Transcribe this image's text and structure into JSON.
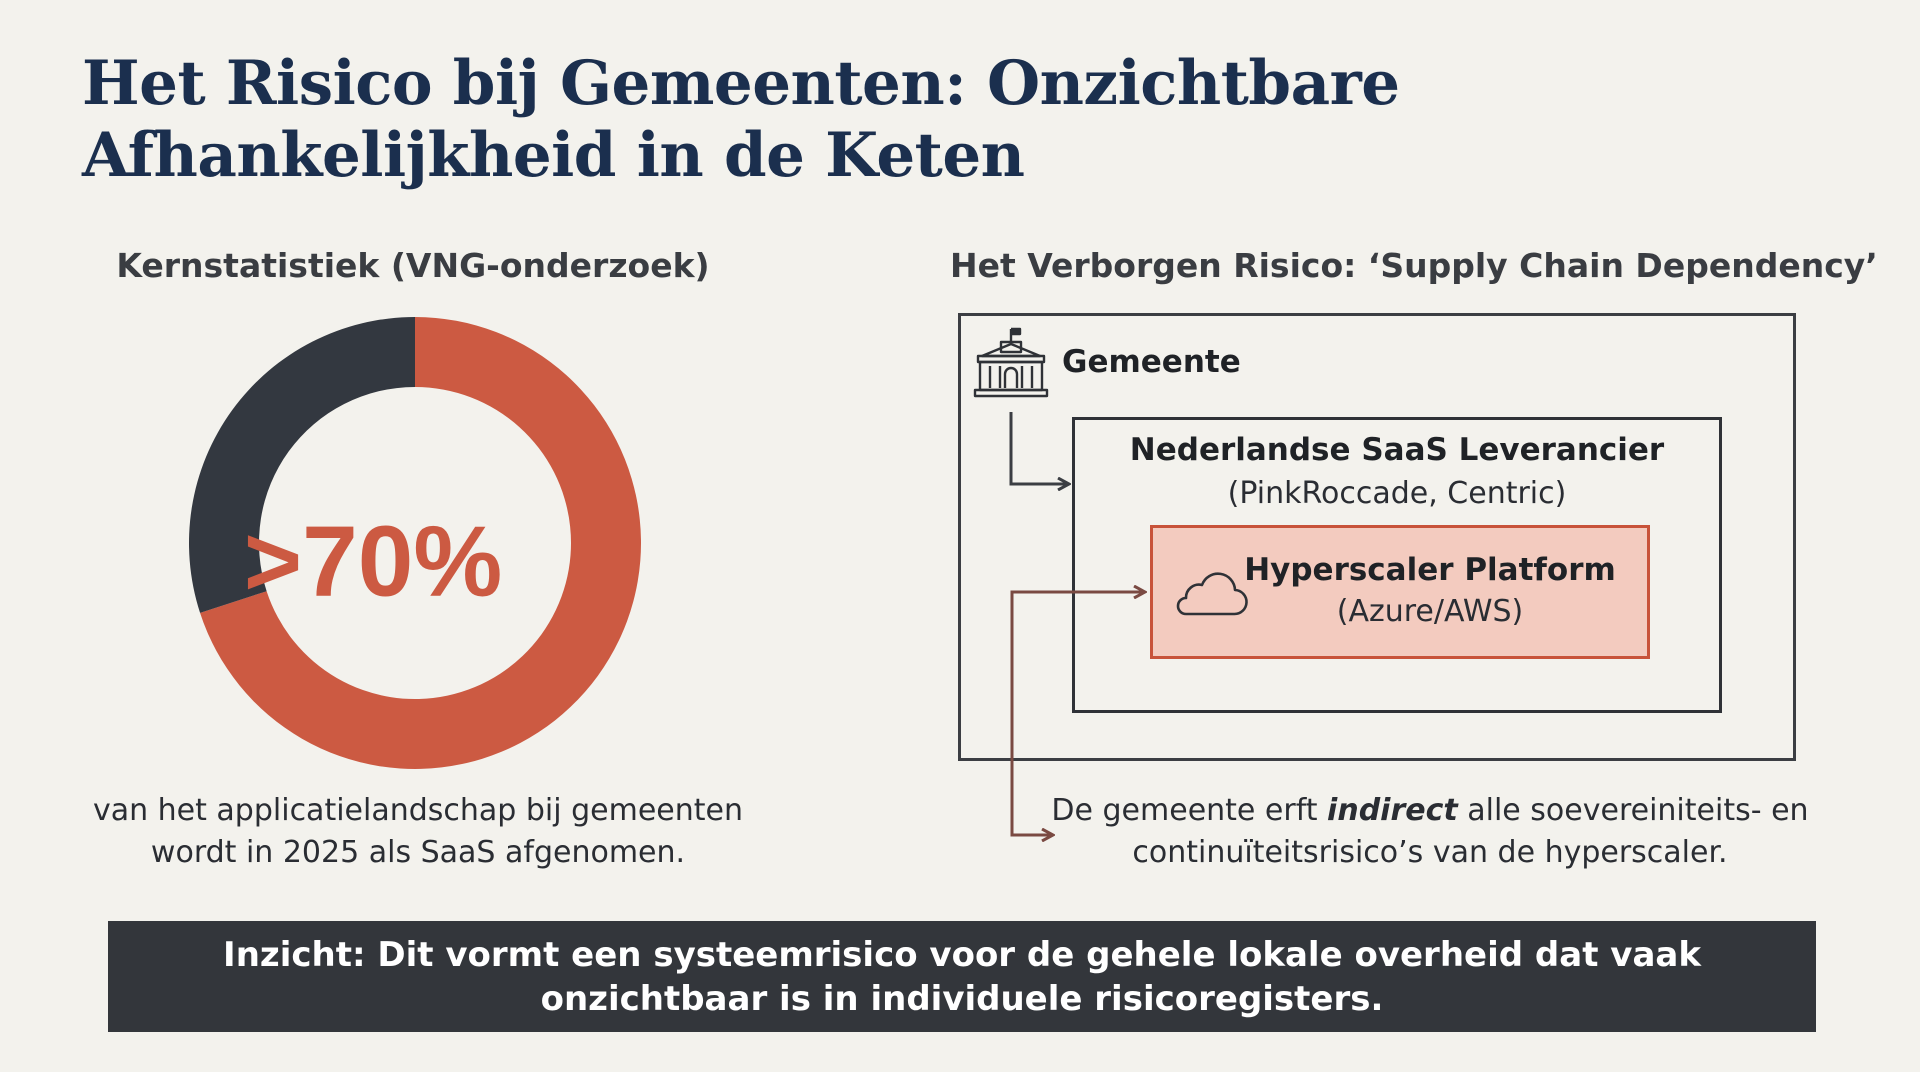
{
  "title": "Het Risico bij Gemeenten: Onzichtbare Afhankelijkheid in de Keten",
  "left": {
    "heading": "Kernstatistiek (VNG-onderzoek)",
    "donut_value_label": ">70%",
    "saas_fraction": 0.7,
    "caption_line1": "van het applicatielandschap bij gemeenten",
    "caption_line2": "wordt in 2025 als SaaS afgenomen."
  },
  "right": {
    "heading": "Het Verborgen Risico: ‘Supply Chain Dependency’",
    "gemeente_label": "Gemeente",
    "saas_label": "Nederlandse SaaS Leverancier",
    "saas_sub": "(PinkRoccade, Centric)",
    "hyper_label": "Hyperscaler Platform",
    "hyper_sub": "(Azure/AWS)",
    "caption_pre": "De gemeente erft ",
    "caption_em": "indirect",
    "caption_post": " alle soevereiniteits- en",
    "caption_line2": "continuïteitsrisico’s van de hyperscaler."
  },
  "insight": {
    "line1": "Inzicht: Dit vormt een systeemrisico voor de gehele lokale overheid dat vaak",
    "line2": "onzichtbaar is in individuele risicoregisters."
  },
  "colors": {
    "accent": "#cc5a42",
    "dark": "#333840",
    "title": "#1b2f4e",
    "inner_fill": "#f3cbbf",
    "arrow_red": "#7a4a42"
  }
}
